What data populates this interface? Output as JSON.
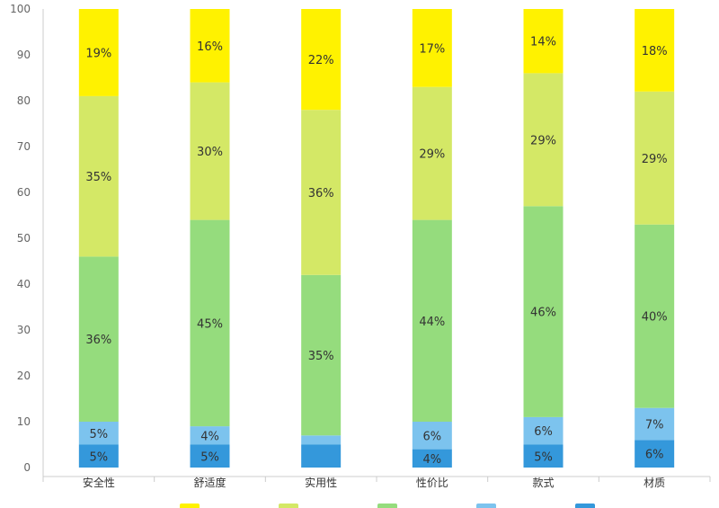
{
  "chart_data": {
    "type": "bar",
    "stacked": true,
    "categories": [
      "安全性",
      "舒适度",
      "实用性",
      "性价比",
      "款式",
      "材质"
    ],
    "series": [
      {
        "color": "#3498db",
        "values": [
          5,
          5,
          5,
          4,
          5,
          6
        ],
        "labels": [
          "5%",
          "5%",
          "",
          "4%",
          "5%",
          "6%"
        ]
      },
      {
        "color": "#7cc3ee",
        "values": [
          5,
          4,
          2,
          6,
          6,
          7
        ],
        "labels": [
          "5%",
          "4%",
          "",
          "6%",
          "6%",
          "7%"
        ]
      },
      {
        "color": "#95dc7d",
        "values": [
          36,
          45,
          35,
          44,
          46,
          40
        ],
        "labels": [
          "36%",
          "45%",
          "35%",
          "44%",
          "46%",
          "40%"
        ]
      },
      {
        "color": "#d4e866",
        "values": [
          35,
          30,
          36,
          29,
          29,
          29
        ],
        "labels": [
          "35%",
          "30%",
          "36%",
          "29%",
          "29%",
          "29%"
        ]
      },
      {
        "color": "#fff200",
        "values": [
          19,
          16,
          22,
          17,
          14,
          18
        ],
        "labels": [
          "19%",
          "16%",
          "22%",
          "17%",
          "14%",
          "18%"
        ]
      }
    ],
    "ylim": [
      0,
      100
    ],
    "yticks": [
      "0",
      "10",
      "20",
      "30",
      "40",
      "50",
      "60",
      "70",
      "80",
      "90",
      "100"
    ],
    "grid": false,
    "legend_position": "bottom"
  }
}
